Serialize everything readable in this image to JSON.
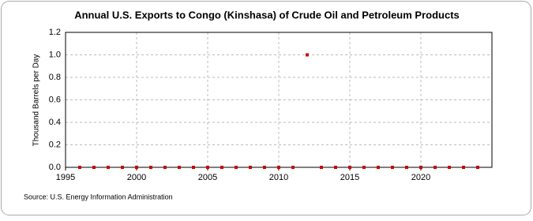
{
  "chart_data": {
    "type": "scatter",
    "title": "Annual U.S. Exports to Congo (Kinshasa) of Crude Oil and Petroleum Products",
    "y_label": "Thousand Barrels per Day",
    "source": "Source: U.S. Energy Information Administration",
    "x": [
      1996,
      1997,
      1998,
      1999,
      2000,
      2001,
      2002,
      2003,
      2004,
      2005,
      2006,
      2007,
      2008,
      2009,
      2010,
      2011,
      2012,
      2013,
      2014,
      2015,
      2016,
      2017,
      2018,
      2019,
      2020,
      2021,
      2022,
      2023,
      2024
    ],
    "series": [
      {
        "name": "Exports",
        "color": "#cc0000",
        "values": [
          0,
          0,
          0,
          0,
          0,
          0,
          0,
          0,
          0,
          0,
          0,
          0,
          0,
          0,
          0,
          0,
          1,
          0,
          0,
          0,
          0,
          0,
          0,
          0,
          0,
          0,
          0,
          0,
          0
        ]
      }
    ],
    "xlim": [
      1995,
      2025
    ],
    "xticks": [
      1995,
      2000,
      2005,
      2010,
      2015,
      2020
    ],
    "ylim": [
      0,
      1.2
    ],
    "yticks": [
      {
        "value": 0,
        "label": "0.0"
      },
      {
        "value": 0.2,
        "label": "0.2"
      },
      {
        "value": 0.4,
        "label": "0.4"
      },
      {
        "value": 0.6,
        "label": "0.6"
      },
      {
        "value": 0.8,
        "label": "0.8"
      },
      {
        "value": 1,
        "label": "1.0"
      },
      {
        "value": 1.2,
        "label": "1.2"
      }
    ],
    "grid": true
  }
}
